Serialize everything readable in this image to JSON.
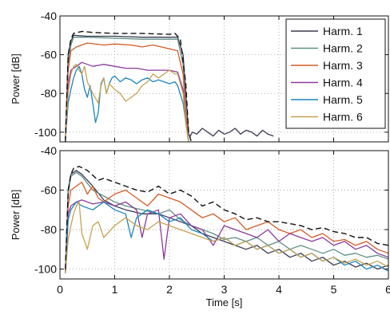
{
  "colors": {
    "background": "#ffffff",
    "axis": "#111111",
    "grid": "#9a9a9a",
    "envelope": "#111111"
  },
  "chart_data": [
    {
      "type": "line",
      "panel": "top",
      "xlim": [
        0,
        6
      ],
      "ylim": [
        -105,
        -40
      ],
      "x_ticks": [],
      "y_ticks": [
        -40,
        -60,
        -80,
        -100
      ],
      "xlabel": "",
      "ylabel": "Power [dB]",
      "grid": true,
      "legend_position": "top-right",
      "legend": [
        "Harm. 1",
        "Harm. 2",
        "Harm. 3",
        "Harm. 4",
        "Harm. 5",
        "Harm. 6"
      ],
      "envelope": {
        "style": "dashed",
        "x": [
          0.1,
          0.15,
          0.2,
          0.25,
          0.4,
          0.6,
          1.0,
          1.5,
          2.0,
          2.1,
          2.2,
          2.3,
          2.35,
          2.4
        ],
        "y": [
          -105,
          -60,
          -52,
          -49,
          -48,
          -48.5,
          -49,
          -49,
          -49.5,
          -49,
          -52,
          -75,
          -100,
          -105
        ]
      },
      "series": [
        {
          "name": "Harm. 1",
          "color": "#3a3a52",
          "x": [
            0.1,
            0.15,
            0.2,
            0.25,
            0.5,
            1.0,
            1.5,
            2.0,
            2.15,
            2.25,
            2.3,
            2.35,
            2.38,
            2.42,
            2.5,
            2.6,
            2.7,
            2.8,
            2.9,
            3.0,
            3.1,
            3.2,
            3.3,
            3.4,
            3.5,
            3.6,
            3.7,
            3.8,
            3.9
          ],
          "y": [
            -104,
            -60,
            -53,
            -50,
            -50.5,
            -50.5,
            -51,
            -51,
            -51,
            -60,
            -80,
            -101,
            -102,
            -100,
            -101,
            -98,
            -100,
            -102,
            -99,
            -101,
            -100,
            -98,
            -101,
            -99,
            -100,
            -102,
            -99,
            -101,
            -102
          ]
        },
        {
          "name": "Harm. 2",
          "color": "#5e8f86",
          "x": [
            0.1,
            0.15,
            0.2,
            0.25,
            0.5,
            1.0,
            1.5,
            2.0,
            2.15,
            2.25,
            2.3,
            2.35
          ],
          "y": [
            -104,
            -65,
            -55,
            -51,
            -51,
            -51.5,
            -52,
            -52,
            -52,
            -65,
            -90,
            -105
          ]
        },
        {
          "name": "Harm. 3",
          "color": "#d45a28",
          "x": [
            0.1,
            0.15,
            0.2,
            0.3,
            0.5,
            0.8,
            1.0,
            1.3,
            1.5,
            1.7,
            2.0,
            2.15,
            2.25,
            2.3,
            2.35
          ],
          "y": [
            -104,
            -68,
            -58,
            -56,
            -54,
            -55,
            -54.5,
            -55,
            -56,
            -55,
            -57,
            -58,
            -70,
            -90,
            -105
          ]
        },
        {
          "name": "Harm. 4",
          "color": "#8a3a9c",
          "x": [
            0.1,
            0.15,
            0.2,
            0.3,
            0.4,
            0.6,
            0.8,
            1.0,
            1.2,
            1.4,
            1.6,
            1.8,
            2.0,
            2.15,
            2.25,
            2.3,
            2.35
          ],
          "y": [
            -104,
            -75,
            -68,
            -66,
            -64,
            -66,
            -65,
            -66,
            -67,
            -67,
            -68,
            -68,
            -68,
            -69,
            -78,
            -95,
            -105
          ]
        },
        {
          "name": "Harm. 5",
          "color": "#1a86c0",
          "x": [
            0.1,
            0.15,
            0.2,
            0.25,
            0.3,
            0.35,
            0.4,
            0.45,
            0.5,
            0.55,
            0.6,
            0.65,
            0.7,
            0.75,
            0.8,
            0.85,
            0.9,
            0.95,
            1.0,
            1.1,
            1.2,
            1.3,
            1.4,
            1.5,
            1.6,
            1.7,
            1.8,
            1.9,
            2.0,
            2.1,
            2.15,
            2.25,
            2.3,
            2.35
          ],
          "y": [
            -104,
            -85,
            -78,
            -72,
            -68,
            -66,
            -70,
            -78,
            -82,
            -76,
            -85,
            -95,
            -90,
            -75,
            -72,
            -80,
            -75,
            -72,
            -71,
            -74,
            -72,
            -73,
            -75,
            -73,
            -72,
            -74,
            -73,
            -74,
            -75,
            -74,
            -76,
            -85,
            -95,
            -105
          ]
        },
        {
          "name": "Harm. 6",
          "color": "#c8a050",
          "x": [
            0.1,
            0.15,
            0.2,
            0.25,
            0.3,
            0.35,
            0.4,
            0.45,
            0.5,
            0.6,
            0.7,
            0.75,
            0.8,
            0.85,
            0.9,
            1.0,
            1.1,
            1.2,
            1.3,
            1.4,
            1.5,
            1.6,
            1.7,
            1.8,
            1.9,
            2.0,
            2.1,
            2.15,
            2.25,
            2.3,
            2.35
          ],
          "y": [
            -104,
            -80,
            -70,
            -66,
            -65,
            -68,
            -70,
            -66,
            -74,
            -80,
            -85,
            -76,
            -72,
            -80,
            -75,
            -78,
            -80,
            -84,
            -82,
            -80,
            -76,
            -74,
            -70,
            -72,
            -70,
            -68,
            -70,
            -70,
            -80,
            -95,
            -105
          ]
        }
      ]
    },
    {
      "type": "line",
      "panel": "bottom",
      "xlim": [
        0,
        6
      ],
      "ylim": [
        -105,
        -40
      ],
      "x_ticks": [
        0,
        1,
        2,
        3,
        4,
        5,
        6
      ],
      "y_ticks": [
        -40,
        -60,
        -80,
        -100
      ],
      "xlabel": "Time [s]",
      "ylabel": "Power [dB]",
      "grid": true,
      "envelope": {
        "style": "dashed",
        "x": [
          0.1,
          0.15,
          0.2,
          0.25,
          0.35,
          0.5,
          0.7,
          0.8,
          1.0,
          1.2,
          1.4,
          1.6,
          1.8,
          2.0,
          2.2,
          2.4,
          2.6,
          2.8,
          3.0,
          3.2,
          3.4,
          3.6,
          3.8,
          4.0,
          4.2,
          4.4,
          4.6,
          4.8,
          5.0,
          5.2,
          5.4,
          5.6,
          5.8,
          6.0
        ],
        "y": [
          -100,
          -60,
          -52,
          -49,
          -48,
          -50,
          -55,
          -54,
          -56,
          -58,
          -60,
          -61,
          -58,
          -62,
          -60,
          -63,
          -68,
          -66,
          -70,
          -72,
          -75,
          -74,
          -76,
          -76,
          -77,
          -78,
          -80,
          -79,
          -81,
          -82,
          -84,
          -84,
          -87,
          -88
        ]
      },
      "series": [
        {
          "name": "Harm. 1",
          "color": "#3a3a52",
          "x": [
            0.1,
            0.15,
            0.2,
            0.3,
            0.4,
            0.6,
            0.8,
            1.0,
            1.2,
            1.5,
            1.8,
            2.0,
            2.2,
            2.4,
            2.6,
            2.8,
            3.0,
            3.2,
            3.4,
            3.6,
            3.8,
            4.0,
            4.2,
            4.4,
            4.6,
            4.8,
            5.0,
            5.2,
            5.4,
            5.6,
            5.8,
            6.0
          ],
          "y": [
            -102,
            -60,
            -52,
            -50,
            -52,
            -58,
            -65,
            -68,
            -70,
            -72,
            -72,
            -74,
            -76,
            -78,
            -82,
            -84,
            -86,
            -88,
            -90,
            -88,
            -92,
            -90,
            -94,
            -92,
            -96,
            -94,
            -98,
            -96,
            -99,
            -97,
            -100,
            -98
          ]
        },
        {
          "name": "Harm. 2",
          "color": "#5e8f86",
          "x": [
            0.1,
            0.15,
            0.2,
            0.3,
            0.4,
            0.6,
            0.8,
            1.0,
            1.2,
            1.5,
            1.8,
            2.0,
            2.2,
            2.4,
            2.6,
            2.8,
            3.0,
            3.2,
            3.4,
            3.6,
            3.8,
            4.0,
            4.2,
            4.4,
            4.6,
            4.8,
            5.0,
            5.2,
            5.4,
            5.6,
            5.8,
            6.0
          ],
          "y": [
            -102,
            -62,
            -53,
            -51,
            -53,
            -60,
            -63,
            -66,
            -68,
            -70,
            -72,
            -70,
            -75,
            -78,
            -80,
            -82,
            -85,
            -84,
            -86,
            -84,
            -88,
            -86,
            -90,
            -88,
            -90,
            -92,
            -90,
            -93,
            -92,
            -94,
            -93,
            -95
          ]
        },
        {
          "name": "Harm. 3",
          "color": "#d45a28",
          "x": [
            0.1,
            0.15,
            0.2,
            0.3,
            0.4,
            0.5,
            0.6,
            0.7,
            0.8,
            1.0,
            1.2,
            1.4,
            1.6,
            1.8,
            2.0,
            2.2,
            2.4,
            2.6,
            2.8,
            3.0,
            3.2,
            3.4,
            3.6,
            3.8,
            4.0,
            4.2,
            4.4,
            4.6,
            4.8,
            5.0,
            5.2,
            5.4,
            5.6,
            5.8,
            6.0
          ],
          "y": [
            -102,
            -68,
            -60,
            -58,
            -56,
            -62,
            -58,
            -64,
            -66,
            -62,
            -60,
            -64,
            -68,
            -62,
            -64,
            -66,
            -70,
            -74,
            -72,
            -76,
            -74,
            -80,
            -78,
            -76,
            -80,
            -82,
            -80,
            -84,
            -82,
            -86,
            -85,
            -88,
            -86,
            -90,
            -92
          ]
        },
        {
          "name": "Harm. 4",
          "color": "#8a3a9c",
          "x": [
            0.1,
            0.15,
            0.2,
            0.3,
            0.4,
            0.6,
            0.8,
            1.0,
            1.2,
            1.4,
            1.5,
            1.6,
            1.8,
            1.9,
            2.0,
            2.2,
            2.4,
            2.6,
            2.8,
            3.0,
            3.2,
            3.4,
            3.6,
            3.8,
            4.0,
            4.2,
            4.4,
            4.6,
            4.8,
            5.0,
            5.2,
            5.4,
            5.6,
            5.8,
            6.0
          ],
          "y": [
            -102,
            -72,
            -68,
            -66,
            -65,
            -67,
            -66,
            -68,
            -66,
            -70,
            -84,
            -72,
            -70,
            -95,
            -74,
            -72,
            -78,
            -80,
            -88,
            -78,
            -80,
            -82,
            -84,
            -80,
            -86,
            -82,
            -84,
            -86,
            -84,
            -88,
            -86,
            -90,
            -88,
            -92,
            -94
          ]
        },
        {
          "name": "Harm. 5",
          "color": "#1a86c0",
          "x": [
            0.1,
            0.15,
            0.2,
            0.3,
            0.4,
            0.6,
            0.8,
            1.0,
            1.2,
            1.3,
            1.4,
            1.6,
            1.8,
            2.0,
            2.2,
            2.4,
            2.6,
            2.8,
            3.0,
            3.2,
            3.4,
            3.6,
            3.8,
            4.0,
            4.2,
            4.4,
            4.6,
            4.8,
            5.0,
            5.2,
            5.4,
            5.6,
            5.8,
            6.0
          ],
          "y": [
            -102,
            -75,
            -70,
            -66,
            -68,
            -70,
            -66,
            -70,
            -72,
            -84,
            -74,
            -70,
            -72,
            -76,
            -74,
            -80,
            -82,
            -86,
            -84,
            -88,
            -86,
            -90,
            -88,
            -92,
            -90,
            -94,
            -92,
            -96,
            -94,
            -98,
            -96,
            -100,
            -98,
            -101
          ]
        },
        {
          "name": "Harm. 6",
          "color": "#c8a050",
          "x": [
            0.1,
            0.15,
            0.2,
            0.25,
            0.3,
            0.35,
            0.4,
            0.5,
            0.6,
            0.7,
            0.8,
            1.0,
            1.2,
            1.4,
            1.6,
            1.8,
            2.0,
            2.2,
            2.4,
            2.6,
            2.8,
            3.0,
            3.2,
            3.4,
            3.6,
            3.8,
            4.0,
            4.2,
            4.4,
            4.6,
            4.8,
            5.0,
            5.2,
            5.4,
            5.6,
            5.8,
            6.0
          ],
          "y": [
            -102,
            -85,
            -78,
            -72,
            -68,
            -66,
            -82,
            -90,
            -78,
            -76,
            -84,
            -78,
            -74,
            -78,
            -80,
            -76,
            -78,
            -80,
            -82,
            -84,
            -86,
            -84,
            -88,
            -86,
            -90,
            -88,
            -92,
            -90,
            -94,
            -92,
            -96,
            -94,
            -97,
            -95,
            -98,
            -96,
            -99
          ]
        }
      ]
    }
  ]
}
